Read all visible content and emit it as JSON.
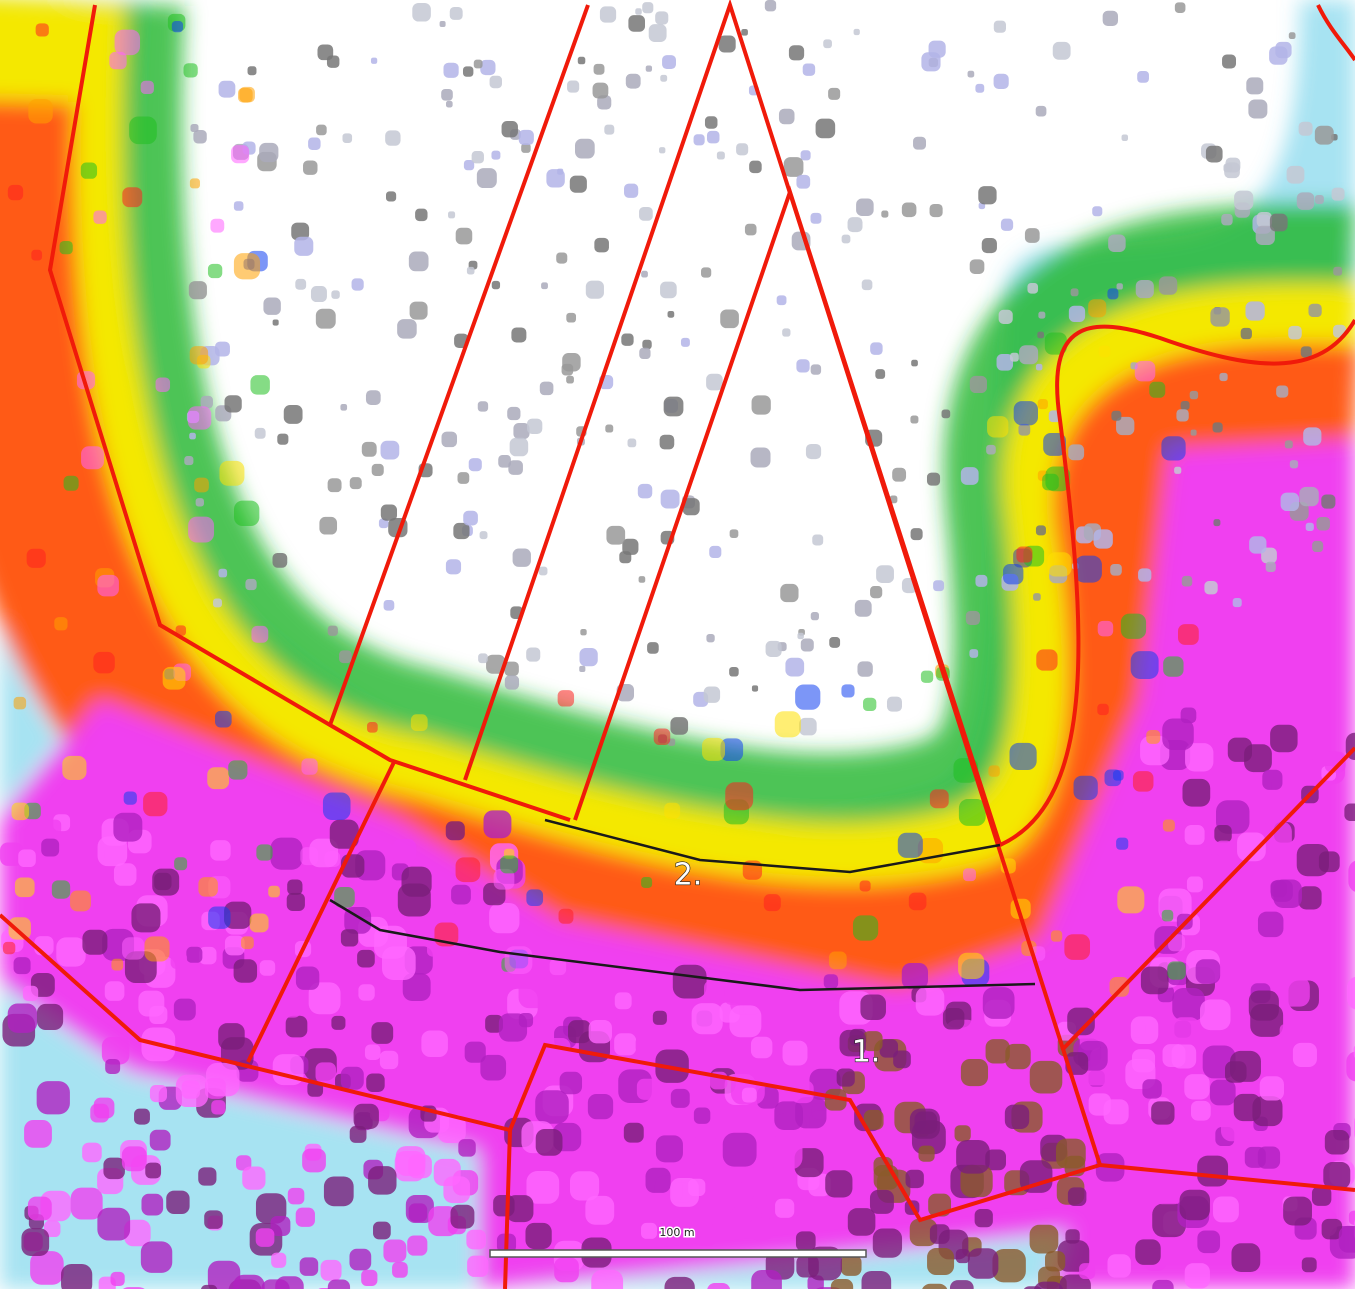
{
  "labels": [
    "2.",
    "1."
  ],
  "scale_bar": {
    "label": "100 m"
  }
}
